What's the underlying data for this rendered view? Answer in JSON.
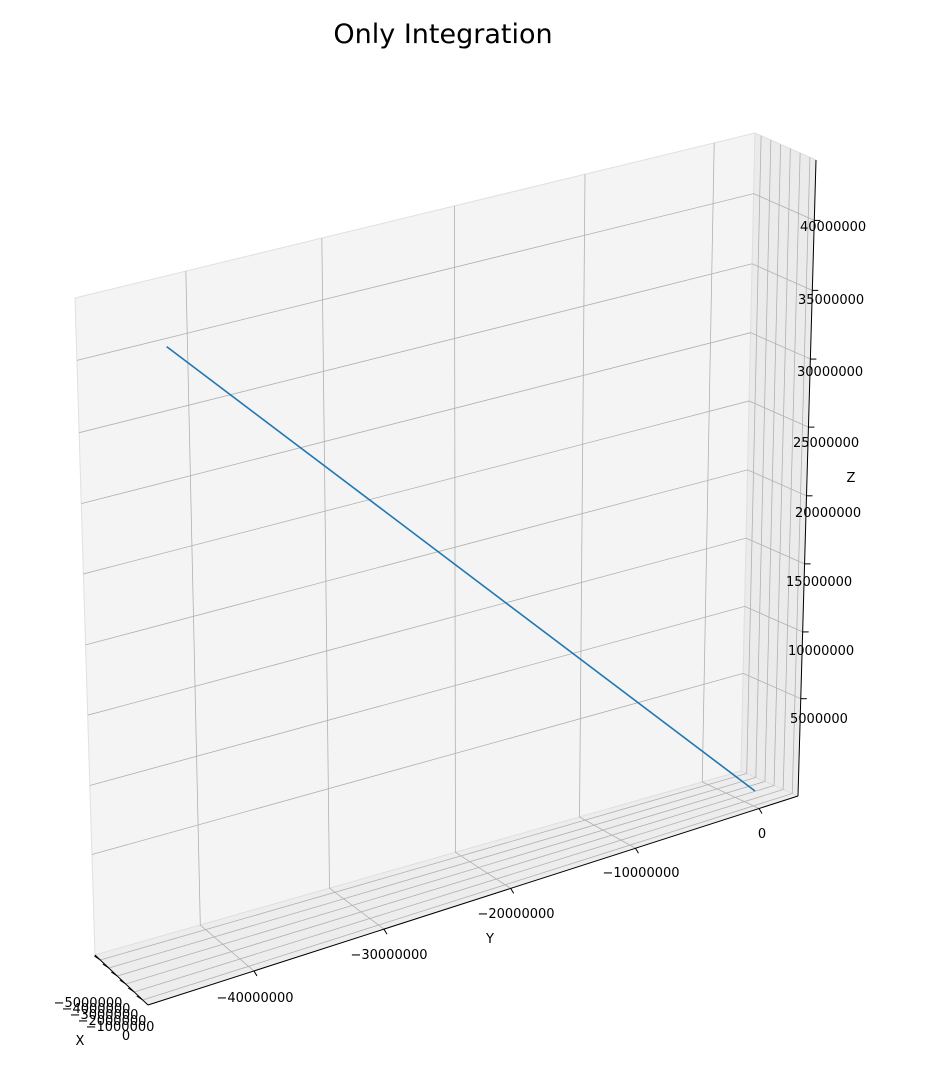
{
  "chart_data": {
    "type": "line",
    "projection": "3d",
    "title": "Only Integration",
    "xlabel": "X",
    "ylabel": "Y",
    "zlabel": "Z",
    "grid": true,
    "x_ticks": [
      "−5000000",
      "−4000000",
      "−3000000",
      "−2000000",
      "−1000000",
      "0"
    ],
    "y_ticks": [
      "−40000000",
      "−30000000",
      "−20000000",
      "−10000000",
      "0"
    ],
    "z_ticks": [
      "5000000",
      "10000000",
      "15000000",
      "20000000",
      "25000000",
      "30000000",
      "35000000",
      "40000000"
    ],
    "series": [
      {
        "color": "#1f77b4",
        "points": [
          {
            "x": 0,
            "y": 0,
            "z": 0
          },
          {
            "x": -4600000,
            "y": -46000000,
            "z": 46000000
          }
        ]
      }
    ]
  }
}
